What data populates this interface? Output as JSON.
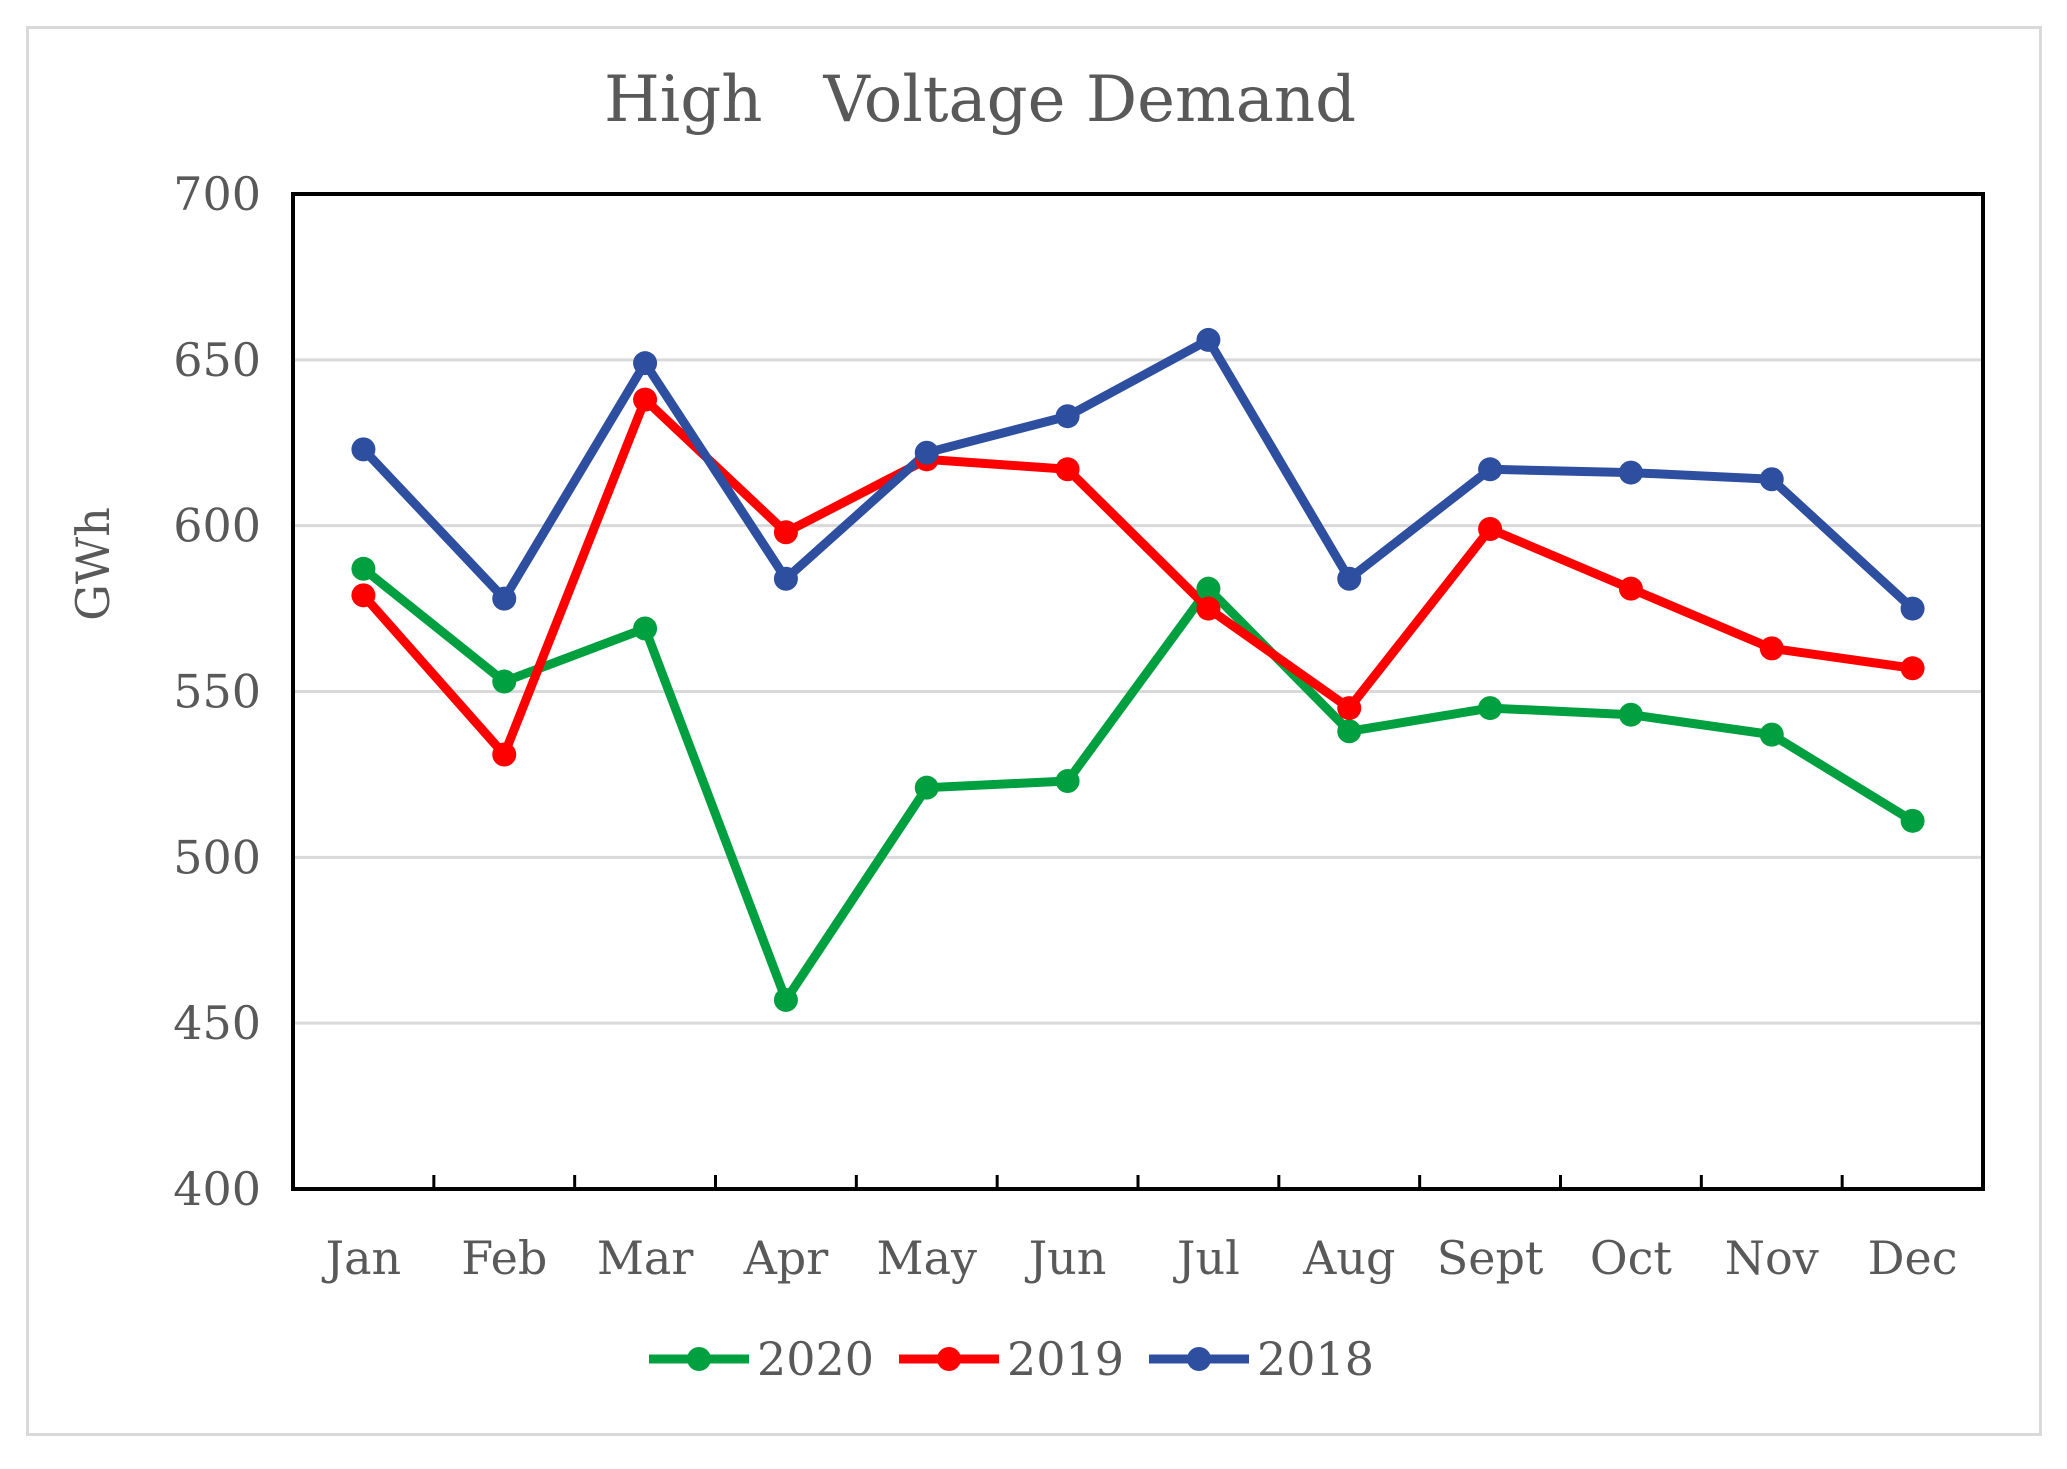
{
  "chart_data": {
    "type": "line",
    "title": "High   Voltage Demand",
    "xlabel": "",
    "ylabel": "GWh",
    "ylim": [
      400,
      700
    ],
    "yticks": [
      400,
      450,
      500,
      550,
      600,
      650,
      700
    ],
    "grid": true,
    "legend_position": "bottom",
    "categories": [
      "Jan",
      "Feb",
      "Mar",
      "Apr",
      "May",
      "Jun",
      "Jul",
      "Aug",
      "Sept",
      "Oct",
      "Nov",
      "Dec"
    ],
    "series": [
      {
        "name": "2020",
        "color": "#00a040",
        "values": [
          587,
          553,
          569,
          457,
          521,
          523,
          581,
          538,
          545,
          543,
          537,
          511
        ]
      },
      {
        "name": "2019",
        "color": "#ff0000",
        "values": [
          579,
          531,
          638,
          598,
          620,
          617,
          575,
          545,
          599,
          581,
          563,
          557
        ]
      },
      {
        "name": "2018",
        "color": "#2e4f9f",
        "values": [
          623,
          578,
          649,
          584,
          622,
          633,
          656,
          584,
          617,
          616,
          614,
          575
        ]
      }
    ]
  }
}
